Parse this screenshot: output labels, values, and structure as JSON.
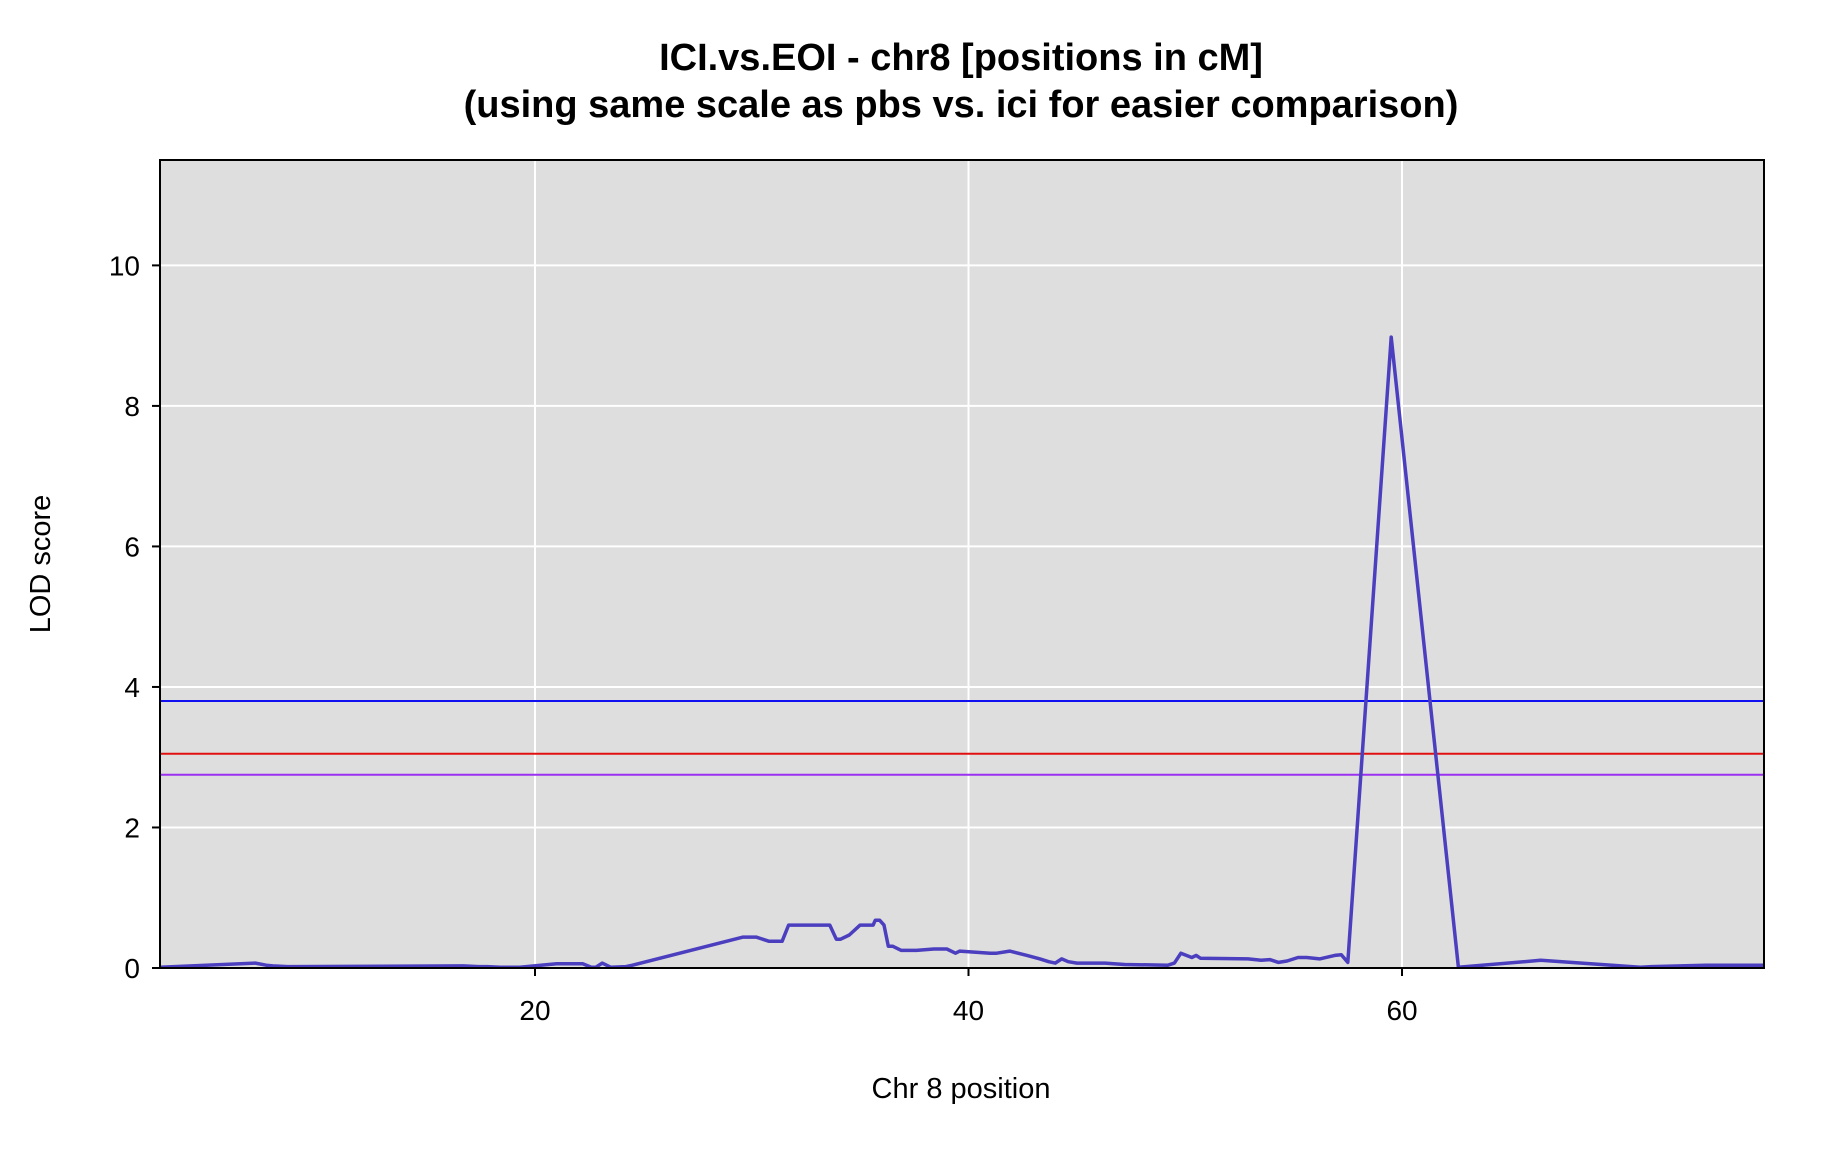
{
  "chart_data": {
    "type": "line",
    "title": "ICI.vs.EOI - chr8 [positions in cM]",
    "subtitle": "(using same scale as pbs  vs. ici for easier comparison)",
    "xlabel": "Chr 8 position",
    "ylabel": "LOD score",
    "xlim": [
      2.7,
      76.7
    ],
    "ylim": [
      0,
      11.5
    ],
    "x_ticks": [
      20,
      40,
      60
    ],
    "y_ticks": [
      0,
      2,
      4,
      6,
      8,
      10
    ],
    "x_tick_labels": [
      "20",
      "40",
      "60"
    ],
    "y_tick_labels": [
      "0",
      "2",
      "4",
      "6",
      "8",
      "10"
    ],
    "grid": true,
    "background": "#dedede",
    "series": [
      {
        "color": "#4b3fbf",
        "x": [
          2.7,
          7.1,
          7.6,
          7.9,
          8.6,
          16.7,
          17.4,
          17.8,
          18.4,
          19.3,
          21.0,
          22.2,
          22.6,
          22.8,
          23.1,
          23.5,
          24.2,
          24.5,
          29.6,
          30.2,
          30.8,
          31.4,
          31.7,
          33.6,
          33.9,
          34.1,
          34.5,
          35.0,
          35.6,
          35.7,
          35.9,
          36.1,
          36.3,
          36.5,
          36.9,
          37.6,
          38.4,
          39.0,
          39.4,
          39.6,
          41.0,
          41.3,
          41.9,
          42.7,
          43.3,
          43.7,
          44.0,
          44.3,
          44.6,
          45.0,
          46.3,
          46.7,
          47.2,
          49.2,
          49.5,
          49.8,
          50.3,
          50.5,
          50.7,
          52.9,
          53.5,
          53.9,
          54.3,
          54.7,
          55.2,
          55.6,
          56.2,
          56.9,
          57.2,
          57.5,
          59.5,
          62.6,
          66.4,
          71.0,
          71.5,
          74.0,
          76.7
        ],
        "y": [
          0.01,
          0.07,
          0.04,
          0.03,
          0.02,
          0.03,
          0.02,
          0.02,
          0.01,
          0.01,
          0.06,
          0.06,
          0.01,
          0.01,
          0.07,
          0.01,
          0.02,
          0.04,
          0.44,
          0.44,
          0.38,
          0.38,
          0.61,
          0.61,
          0.41,
          0.41,
          0.47,
          0.61,
          0.61,
          0.68,
          0.68,
          0.61,
          0.31,
          0.31,
          0.25,
          0.25,
          0.27,
          0.27,
          0.21,
          0.24,
          0.21,
          0.21,
          0.24,
          0.18,
          0.13,
          0.09,
          0.07,
          0.13,
          0.09,
          0.07,
          0.07,
          0.06,
          0.05,
          0.04,
          0.07,
          0.21,
          0.15,
          0.18,
          0.14,
          0.13,
          0.11,
          0.12,
          0.08,
          0.1,
          0.15,
          0.15,
          0.13,
          0.18,
          0.19,
          0.08,
          8.98,
          0.01,
          0.11,
          0.01,
          0.02,
          0.04,
          0.04
        ]
      }
    ],
    "thresholds": [
      {
        "value": 3.8,
        "color": "#1010f0"
      },
      {
        "value": 3.05,
        "color": "#e01010"
      },
      {
        "value": 2.75,
        "color": "#9b30f0"
      }
    ]
  }
}
